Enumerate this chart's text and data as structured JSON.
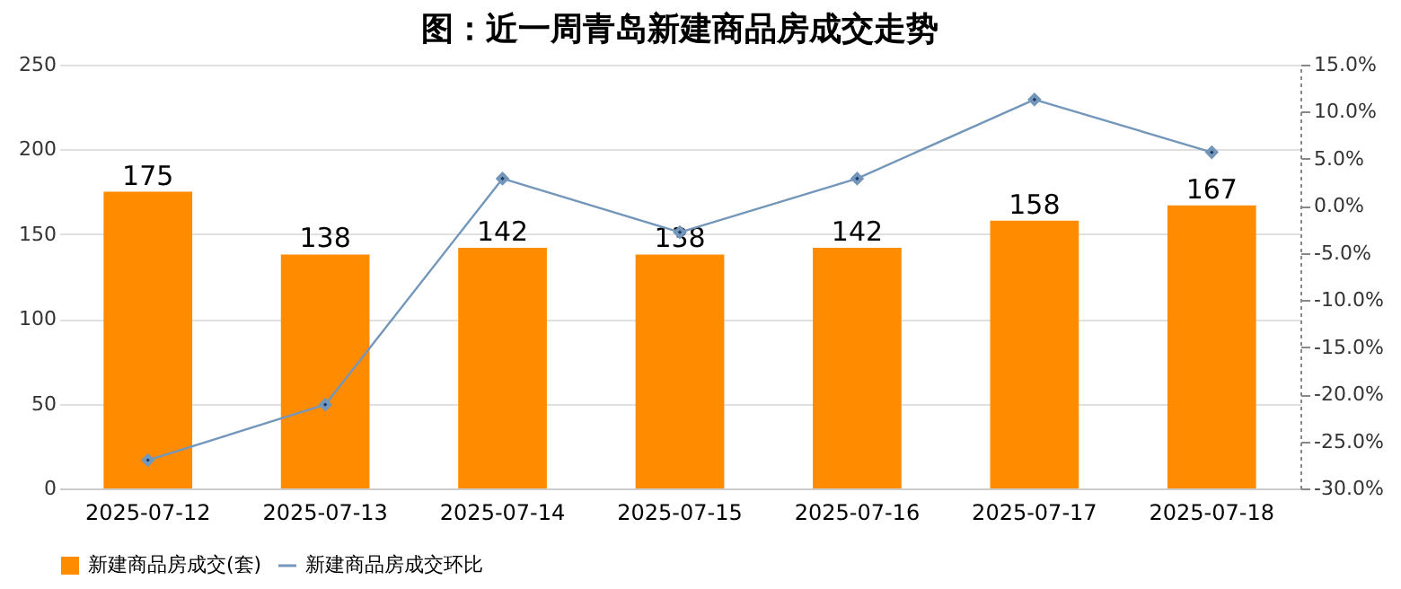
{
  "chart_data": {
    "type": "bar",
    "title": "图：近一周青岛新建商品房成交走势",
    "categories": [
      "2025-07-12",
      "2025-07-13",
      "2025-07-14",
      "2025-07-15",
      "2025-07-16",
      "2025-07-17",
      "2025-07-18"
    ],
    "series": [
      {
        "name": "新建商品房成交(套)",
        "color": "#ff8c00",
        "values": [
          175,
          138,
          142,
          138,
          142,
          158,
          167
        ],
        "value_labels": [
          "175",
          "138",
          "142",
          "138",
          "142",
          "158",
          "167"
        ]
      },
      {
        "name": "新建商品房成交环比",
        "type": "line",
        "axis": "y2",
        "color": "#7396bb",
        "marker": "diamond",
        "values": [
          -27.0,
          -21.1,
          2.9,
          -2.8,
          2.9,
          11.3,
          5.7
        ]
      }
    ],
    "ylim": [
      0,
      250
    ],
    "yticks": [
      0,
      50,
      100,
      150,
      200,
      250
    ],
    "y2lim": [
      -30,
      15
    ],
    "y2ticks": [
      {
        "value": 15,
        "label": "15.0%"
      },
      {
        "value": 10,
        "label": "10.0%"
      },
      {
        "value": 5,
        "label": "5.0%"
      },
      {
        "value": 0,
        "label": "0.0%"
      },
      {
        "value": -5,
        "label": "-5.0%"
      },
      {
        "value": -10,
        "label": "-10.0%"
      },
      {
        "value": -15,
        "label": "-15.0%"
      },
      {
        "value": -20,
        "label": "-20.0%"
      },
      {
        "value": -25,
        "label": "-25.0%"
      },
      {
        "value": -30,
        "label": "-30.0%"
      }
    ],
    "grid": "y",
    "legend": "bottom"
  }
}
